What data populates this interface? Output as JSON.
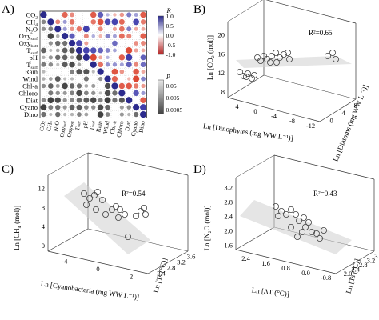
{
  "panels": {
    "A": "A)",
    "B": "B)",
    "C": "C)",
    "D": "D)"
  },
  "chart_data": [
    {
      "type": "heatmap",
      "panel": "A",
      "row_labels": [
        "CO₂",
        "CH₄",
        "N₂O",
        "Oxy_surf",
        "Oxy_bott",
        "T_surf",
        "pH",
        "T_surf",
        "Rain",
        "Wind",
        "Chl-a",
        "Chloro",
        "Diat",
        "Cyano",
        "Dino"
      ],
      "row_labels_display": [
        [
          "CO",
          2
        ],
        [
          "CH",
          4
        ],
        [
          "N",
          2,
          "O"
        ],
        [
          "Oxy",
          "surf"
        ],
        [
          "Oxy",
          "bott"
        ],
        [
          "T",
          "surf"
        ],
        [
          "pH"
        ],
        [
          "T",
          "surf"
        ],
        [
          "Rain"
        ],
        [
          "Wind"
        ],
        [
          "Chl-a"
        ],
        [
          "Chloro"
        ],
        [
          "Diat"
        ],
        [
          "Cyano"
        ],
        [
          "Dino"
        ]
      ],
      "col_labels": [
        "CO₂",
        "CH₄",
        "N₂O",
        "Oxy_surf",
        "Oxy_bott",
        "T_surf",
        "pH",
        "T_surf",
        "Rain",
        "Wind",
        "Chl-a",
        "Chloro",
        "Diat",
        "Cyano",
        "Dino"
      ],
      "legend_r": {
        "title": "R",
        "ticks": [
          "1.0",
          "0.5",
          "0.0",
          "-0.5",
          "-1.0"
        ],
        "colors": {
          "pos": "#2b2a8c",
          "neg": "#c0392b",
          "mid": "#ffffff"
        }
      },
      "legend_p": {
        "title": "p",
        "ticks": [
          "0.05",
          "0.005",
          "0.0005"
        ]
      },
      "note": "upper triangle = R (color), lower triangle = p (gray size)"
    },
    {
      "type": "scatter",
      "panel": "B",
      "zlabel": "Ln [CO₂ (mol)]",
      "xlabel": "Ln [Dinophytes (mg WW L⁻¹)]",
      "ylabel": "Ln [Diatoms (mg WW L⁻¹)]",
      "annotation": "R²=0.65",
      "z_ticks": [
        "8",
        "12",
        "16",
        "20"
      ],
      "x_ticks": [
        "4",
        "0",
        "-4",
        "-8",
        "-12"
      ],
      "y_ticks": [
        "0",
        "4",
        "8"
      ]
    },
    {
      "type": "scatter",
      "panel": "C",
      "zlabel": "Ln [CH₄ (mol)]",
      "xlabel": "Ln [Cyanobacteria (mg WW L⁻¹)]",
      "ylabel": "Ln [Ts (°C)]",
      "annotation": "R²=0.54",
      "z_ticks": [
        "0",
        "4",
        "8",
        "12"
      ],
      "x_ticks": [
        "-4",
        "0",
        "2"
      ],
      "y_ticks": [
        "2.4",
        "2.8",
        "3.2",
        "3.6"
      ]
    },
    {
      "type": "scatter",
      "panel": "D",
      "zlabel": "Ln [N₂O (mol)]",
      "xlabel": "Ln [ΔT (°C)]",
      "ylabel": "Ln [Ts (°C)]",
      "annotation": "R²=0.43",
      "z_ticks": [
        "1.6",
        "2.0",
        "2.4",
        "2.8",
        "3.2"
      ],
      "x_ticks": [
        "2.4",
        "1.6",
        "0.8",
        "0.0",
        "-0.8"
      ],
      "y_ticks": [
        "2.0",
        "2.4",
        "2.8",
        "3.2",
        "3.6"
      ]
    }
  ]
}
